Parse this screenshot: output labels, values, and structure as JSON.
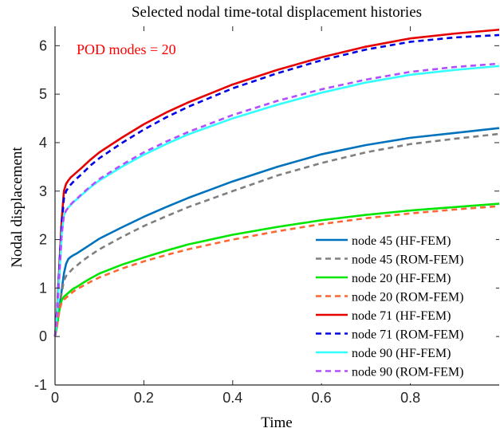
{
  "chart_data": {
    "type": "line",
    "title": "Selected nodal time-total displacement histories",
    "xlabel": "Time",
    "ylabel": "Nodal displacement",
    "annotation": "POD modes = 20",
    "annotation_color": "#ff0000",
    "xlim": [
      0,
      1
    ],
    "ylim": [
      -1,
      6.4
    ],
    "x_ticks": [
      0,
      0.2,
      0.4,
      0.6,
      0.8
    ],
    "x_tick_labels": [
      "0",
      "0.2",
      "0.4",
      "0.6",
      "0.8"
    ],
    "y_ticks": [
      -1,
      0,
      1,
      2,
      3,
      4,
      5,
      6
    ],
    "y_tick_labels": [
      "-1",
      "0",
      "1",
      "2",
      "3",
      "4",
      "5",
      "6"
    ],
    "grid": false,
    "legend_position": "bottom-right",
    "x": [
      0,
      0.005,
      0.01,
      0.015,
      0.02,
      0.025,
      0.03,
      0.035,
      0.04,
      0.05,
      0.06,
      0.08,
      0.1,
      0.15,
      0.2,
      0.25,
      0.3,
      0.4,
      0.5,
      0.6,
      0.7,
      0.8,
      0.9,
      1.0
    ],
    "series": [
      {
        "name": "node 45 (HF-FEM)",
        "color": "#0072bd",
        "dash": "solid",
        "values": [
          0,
          0.25,
          0.6,
          0.95,
          1.3,
          1.5,
          1.6,
          1.64,
          1.67,
          1.72,
          1.78,
          1.9,
          2.02,
          2.25,
          2.47,
          2.67,
          2.86,
          3.2,
          3.5,
          3.76,
          3.95,
          4.1,
          4.2,
          4.3
        ]
      },
      {
        "name": "node 45 (ROM-FEM)",
        "color": "#7f7f7f",
        "dash": "dashed",
        "values": [
          0,
          0.25,
          0.6,
          0.9,
          1.15,
          1.25,
          1.3,
          1.35,
          1.4,
          1.47,
          1.55,
          1.68,
          1.8,
          2.05,
          2.28,
          2.48,
          2.67,
          3.0,
          3.32,
          3.58,
          3.8,
          3.97,
          4.08,
          4.18
        ]
      },
      {
        "name": "node 20 (HF-FEM)",
        "color": "#00e600",
        "dash": "solid",
        "values": [
          0,
          0.25,
          0.55,
          0.75,
          0.82,
          0.86,
          0.9,
          0.94,
          0.98,
          1.03,
          1.09,
          1.2,
          1.3,
          1.48,
          1.63,
          1.77,
          1.9,
          2.1,
          2.26,
          2.4,
          2.51,
          2.6,
          2.67,
          2.74
        ]
      },
      {
        "name": "node 20 (ROM-FEM)",
        "color": "#ff6633",
        "dash": "dashed",
        "values": [
          0,
          0.25,
          0.55,
          0.7,
          0.76,
          0.8,
          0.84,
          0.88,
          0.92,
          0.98,
          1.03,
          1.13,
          1.22,
          1.4,
          1.55,
          1.68,
          1.8,
          2.0,
          2.17,
          2.32,
          2.44,
          2.54,
          2.62,
          2.69
        ]
      },
      {
        "name": "node 71 (HF-FEM)",
        "color": "#e60000",
        "dash": "solid",
        "values": [
          0,
          0.6,
          1.5,
          2.4,
          3.0,
          3.15,
          3.22,
          3.28,
          3.32,
          3.4,
          3.48,
          3.65,
          3.8,
          4.1,
          4.38,
          4.62,
          4.83,
          5.2,
          5.5,
          5.76,
          5.98,
          6.15,
          6.25,
          6.33
        ]
      },
      {
        "name": "node 71 (ROM-FEM)",
        "color": "#0000e6",
        "dash": "dashed",
        "values": [
          0,
          0.6,
          1.5,
          2.3,
          2.85,
          3.0,
          3.07,
          3.13,
          3.18,
          3.27,
          3.35,
          3.53,
          3.68,
          3.99,
          4.27,
          4.52,
          4.74,
          5.12,
          5.43,
          5.7,
          5.92,
          6.08,
          6.17,
          6.22
        ]
      },
      {
        "name": "node 90 (HF-FEM)",
        "color": "#33ffff",
        "dash": "solid",
        "values": [
          0,
          0.5,
          1.3,
          2.1,
          2.5,
          2.6,
          2.66,
          2.71,
          2.76,
          2.84,
          2.92,
          3.08,
          3.22,
          3.5,
          3.75,
          3.97,
          4.17,
          4.5,
          4.78,
          5.03,
          5.24,
          5.4,
          5.5,
          5.58
        ]
      },
      {
        "name": "node 90 (ROM-FEM)",
        "color": "#b34dff",
        "dash": "dashed",
        "values": [
          0,
          0.5,
          1.3,
          2.1,
          2.5,
          2.6,
          2.66,
          2.72,
          2.77,
          2.85,
          2.94,
          3.1,
          3.25,
          3.54,
          3.8,
          4.02,
          4.22,
          4.57,
          4.86,
          5.1,
          5.3,
          5.46,
          5.56,
          5.63
        ]
      }
    ]
  }
}
